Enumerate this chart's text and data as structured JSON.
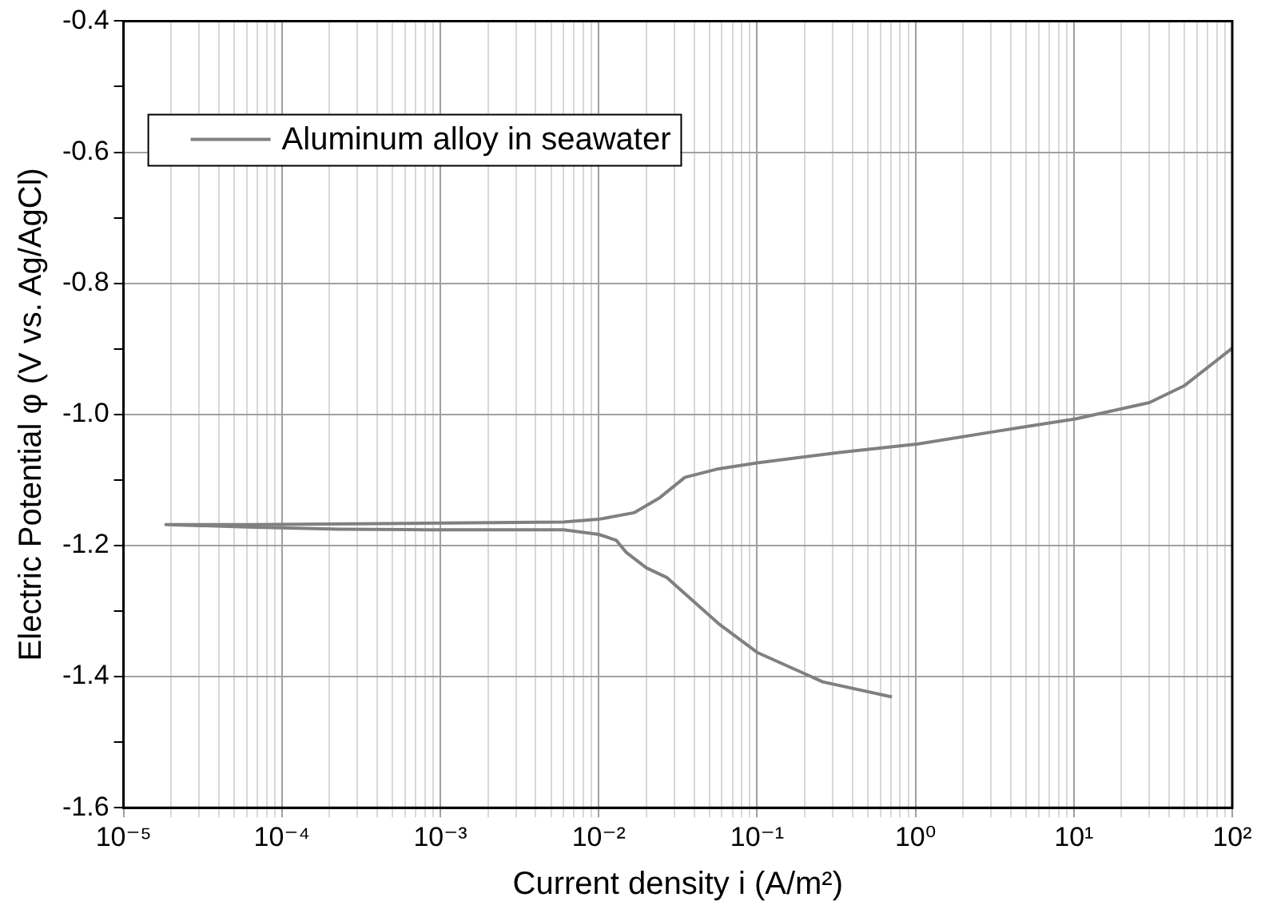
{
  "chart_data": {
    "type": "line",
    "xlabel": "Current density i (A/m²)",
    "ylabel": "Electric Potential φ (V vs. Ag/AgCl)",
    "series": [
      {
        "name": "Aluminum alloy in seawater",
        "color": "#808080",
        "x": [
          0.71,
          0.26,
          0.1,
          0.057,
          0.027,
          0.02,
          0.015,
          0.0129,
          0.01,
          0.006,
          0.0029,
          0.00081,
          0.00023,
          6.6e-05,
          1.85e-05,
          6.6e-05,
          0.00081,
          0.006,
          0.01,
          0.0167,
          0.024,
          0.035,
          0.057,
          0.1,
          0.33,
          1.04,
          3.2,
          10.2,
          30,
          50,
          100
        ],
        "values": [
          -1.431,
          -1.408,
          -1.363,
          -1.319,
          -1.249,
          -1.234,
          -1.211,
          -1.192,
          -1.183,
          -1.176,
          -1.176,
          -1.176,
          -1.175,
          -1.172,
          -1.168,
          -1.168,
          -1.166,
          -1.164,
          -1.16,
          -1.15,
          -1.128,
          -1.096,
          -1.083,
          -1.074,
          -1.058,
          -1.045,
          -1.026,
          -1.007,
          -0.982,
          -0.956,
          -0.899
        ]
      }
    ],
    "log": "x",
    "xlim": [
      1e-05,
      100
    ],
    "xticks": [
      {
        "value": 1e-05,
        "label": "10⁻⁵"
      },
      {
        "value": 2e-05,
        "label": null
      },
      {
        "value": 3e-05,
        "label": null
      },
      {
        "value": 4e-05,
        "label": null
      },
      {
        "value": 5e-05,
        "label": null
      },
      {
        "value": 6e-05,
        "label": null
      },
      {
        "value": 7e-05,
        "label": null
      },
      {
        "value": 8e-05,
        "label": null
      },
      {
        "value": 9e-05,
        "label": null
      },
      {
        "value": 0.0001,
        "label": "10⁻⁴"
      },
      {
        "value": 0.0002,
        "label": null
      },
      {
        "value": 0.0003,
        "label": null
      },
      {
        "value": 0.0004,
        "label": null
      },
      {
        "value": 0.0005,
        "label": null
      },
      {
        "value": 0.0006,
        "label": null
      },
      {
        "value": 0.0007,
        "label": null
      },
      {
        "value": 0.0008,
        "label": null
      },
      {
        "value": 0.0009,
        "label": null
      },
      {
        "value": 0.001,
        "label": "10⁻³"
      },
      {
        "value": 0.002,
        "label": null
      },
      {
        "value": 0.003,
        "label": null
      },
      {
        "value": 0.004,
        "label": null
      },
      {
        "value": 0.005,
        "label": null
      },
      {
        "value": 0.006,
        "label": null
      },
      {
        "value": 0.007,
        "label": null
      },
      {
        "value": 0.008,
        "label": null
      },
      {
        "value": 0.009,
        "label": null
      },
      {
        "value": 0.01,
        "label": "10⁻²"
      },
      {
        "value": 0.02,
        "label": null
      },
      {
        "value": 0.03,
        "label": null
      },
      {
        "value": 0.04,
        "label": null
      },
      {
        "value": 0.05,
        "label": null
      },
      {
        "value": 0.06,
        "label": null
      },
      {
        "value": 0.07,
        "label": null
      },
      {
        "value": 0.08,
        "label": null
      },
      {
        "value": 0.09,
        "label": null
      },
      {
        "value": 0.1,
        "label": "10⁻¹"
      },
      {
        "value": 0.2,
        "label": null
      },
      {
        "value": 0.3,
        "label": null
      },
      {
        "value": 0.4,
        "label": null
      },
      {
        "value": 0.5,
        "label": null
      },
      {
        "value": 0.6,
        "label": null
      },
      {
        "value": 0.7,
        "label": null
      },
      {
        "value": 0.8,
        "label": null
      },
      {
        "value": 0.9,
        "label": null
      },
      {
        "value": 1,
        "label": "10⁰"
      },
      {
        "value": 2,
        "label": null
      },
      {
        "value": 3,
        "label": null
      },
      {
        "value": 4,
        "label": null
      },
      {
        "value": 5,
        "label": null
      },
      {
        "value": 6,
        "label": null
      },
      {
        "value": 7,
        "label": null
      },
      {
        "value": 8,
        "label": null
      },
      {
        "value": 9,
        "label": null
      },
      {
        "value": 10,
        "label": "10¹"
      },
      {
        "value": 20,
        "label": null
      },
      {
        "value": 30,
        "label": null
      },
      {
        "value": 40,
        "label": null
      },
      {
        "value": 50,
        "label": null
      },
      {
        "value": 60,
        "label": null
      },
      {
        "value": 70,
        "label": null
      },
      {
        "value": 80,
        "label": null
      },
      {
        "value": 90,
        "label": null
      },
      {
        "value": 100,
        "label": "10²"
      }
    ],
    "ylim": [
      -1.6,
      -0.4
    ],
    "yticks": [
      {
        "value": -1.6,
        "label": "-1.6"
      },
      {
        "value": -1.5,
        "label": null
      },
      {
        "value": -1.4,
        "label": "-1.4"
      },
      {
        "value": -1.3,
        "label": null
      },
      {
        "value": -1.2,
        "label": "-1.2"
      },
      {
        "value": -1.1,
        "label": null
      },
      {
        "value": -1.0,
        "label": "-1.0"
      },
      {
        "value": -0.9,
        "label": null
      },
      {
        "value": -0.8,
        "label": "-0.8"
      },
      {
        "value": -0.7,
        "label": null
      },
      {
        "value": -0.6,
        "label": "-0.6"
      },
      {
        "value": -0.5,
        "label": null
      },
      {
        "value": -0.4,
        "label": "-0.4"
      }
    ],
    "grid": true,
    "legend": "top left",
    "marker": "none",
    "line_style": "solid"
  }
}
